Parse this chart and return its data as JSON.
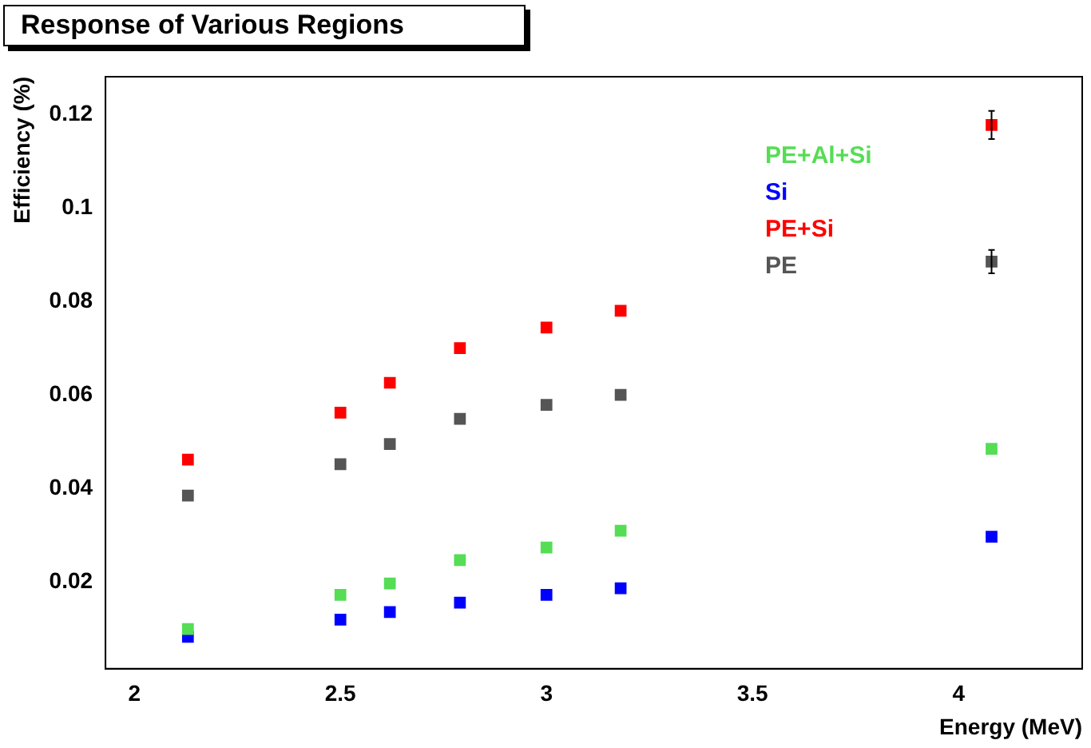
{
  "chart_data": {
    "type": "scatter",
    "title": "Response of Various Regions",
    "xlabel": "Energy (MeV)",
    "ylabel": "Efficiency (%)",
    "x": [
      2.13,
      2.5,
      2.62,
      2.79,
      3.0,
      3.18,
      4.08
    ],
    "series": [
      {
        "name": "PE+Al+Si",
        "color": "#55dd55",
        "values": [
          0.01,
          0.0173,
          0.0197,
          0.0247,
          0.0274,
          0.031,
          0.0485
        ]
      },
      {
        "name": "Si",
        "color": "#0000ff",
        "values": [
          0.0083,
          0.012,
          0.0136,
          0.0156,
          0.0173,
          0.0187,
          0.0297
        ]
      },
      {
        "name": "PE+Si",
        "color": "#ff0000",
        "values": [
          0.0462,
          0.0562,
          0.0626,
          0.07,
          0.0744,
          0.078,
          0.1177
        ],
        "errors": [
          null,
          null,
          null,
          null,
          null,
          null,
          0.003
        ]
      },
      {
        "name": "PE",
        "color": "#555555",
        "values": [
          0.0385,
          0.0452,
          0.0495,
          0.0549,
          0.0579,
          0.06,
          0.0885
        ],
        "errors": [
          null,
          null,
          null,
          null,
          null,
          null,
          0.0025
        ]
      }
    ],
    "xlim": [
      1.93,
      4.3
    ],
    "xticks": [
      2,
      2.5,
      3,
      3.5,
      4
    ],
    "ylim": [
      0.0015,
      0.128
    ],
    "yticks": [
      0.02,
      0.04,
      0.06,
      0.08,
      0.1,
      0.12
    ],
    "grid": false,
    "legend": "top right",
    "marker": "square"
  }
}
